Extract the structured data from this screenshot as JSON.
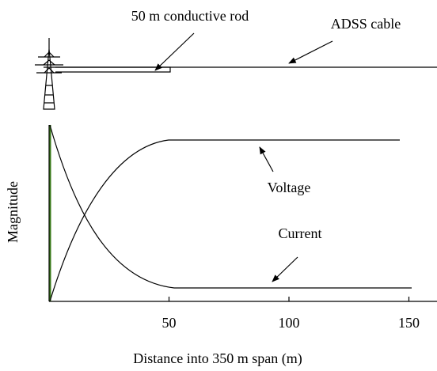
{
  "labels": {
    "rod": "50 m conductive rod",
    "cable": "ADSS cable",
    "voltage": "Voltage",
    "current": "Current"
  },
  "axes": {
    "x_label": "Distance into 350 m span (m)",
    "y_label": "Magnitude",
    "x_ticks": [
      50,
      100,
      150
    ]
  }
}
